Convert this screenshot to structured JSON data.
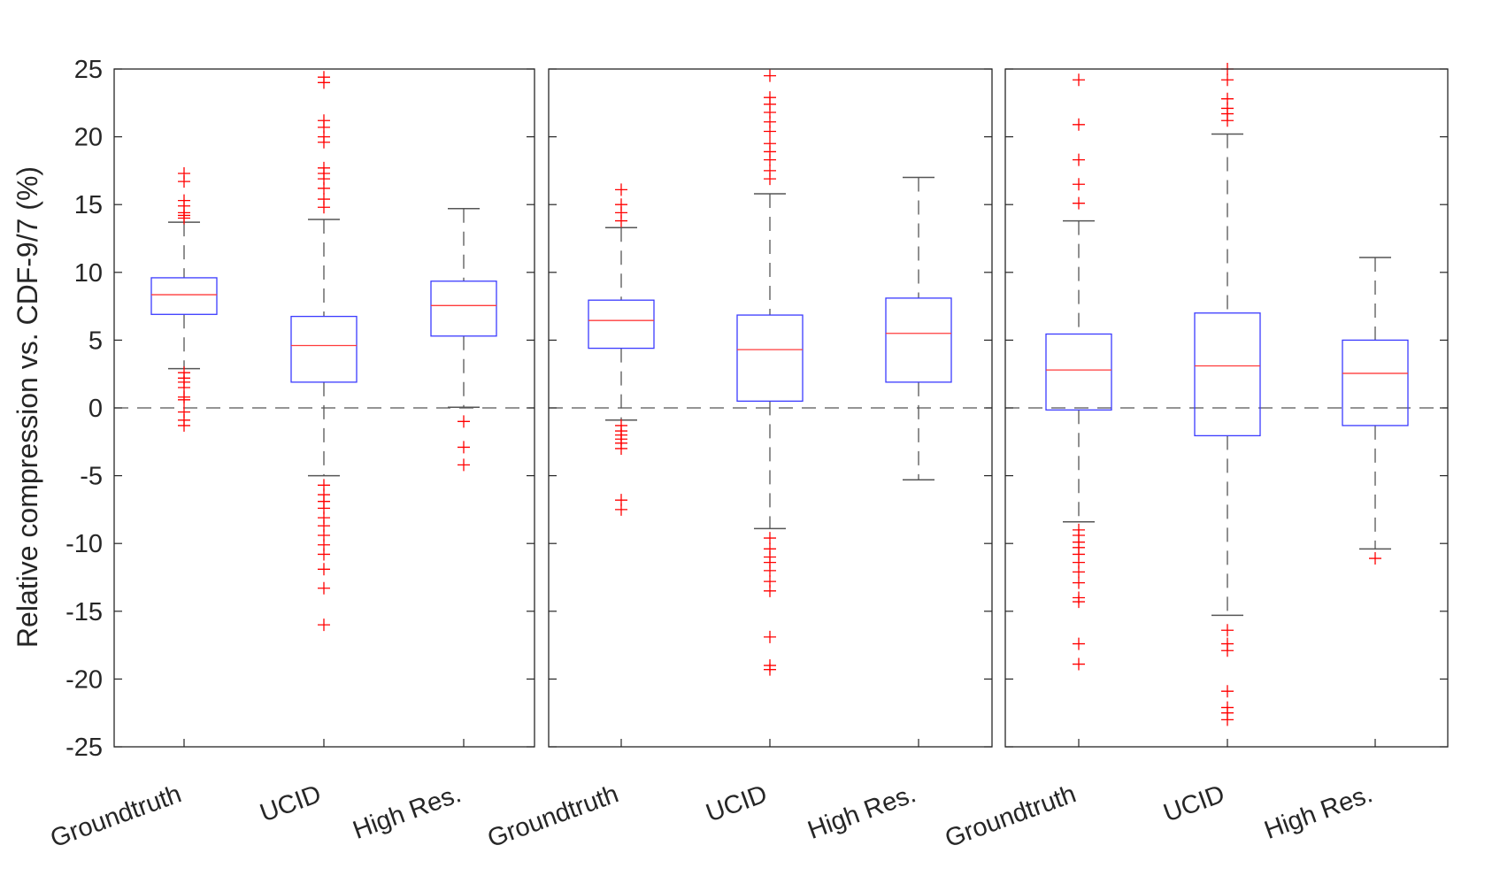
{
  "chart_data": {
    "type": "box",
    "ylabel": "Relative compression vs. CDF-9/7 (%)",
    "ylim": [
      -25,
      25
    ],
    "yticks": [
      25,
      20,
      15,
      10,
      5,
      0,
      -5,
      -10,
      -15,
      -20,
      -25
    ],
    "reference_line": {
      "y": 0,
      "style": "dashed"
    },
    "colors": {
      "box": "#3b3bff",
      "median": "#ff3b3b",
      "whisker": "#555555",
      "outlier": "#ff0000",
      "axis": "#262626"
    },
    "panels": [
      {
        "categories": [
          "Groundtruth",
          "UCID",
          "High Res."
        ],
        "boxes": [
          {
            "q1": 6.9,
            "median": 8.35,
            "q3": 9.6,
            "whisker_low": 2.9,
            "whisker_high": 13.7,
            "outliers": [
              17.3,
              16.7,
              15.3,
              14.9,
              14.4,
              14.2,
              14.0,
              2.6,
              2.2,
              1.9,
              1.5,
              0.8,
              0.6,
              -0.3,
              -0.9,
              -1.3
            ]
          },
          {
            "q1": 1.9,
            "median": 4.6,
            "q3": 6.75,
            "whisker_low": -5.0,
            "whisker_high": 13.9,
            "outliers": [
              24.4,
              24.0,
              21.2,
              20.7,
              20.0,
              19.6,
              17.7,
              17.3,
              16.9,
              16.2,
              15.4,
              14.8,
              -5.7,
              -6.4,
              -6.9,
              -7.4,
              -8.1,
              -8.7,
              -9.4,
              -10.1,
              -10.8,
              -11.9,
              -13.3,
              -16.0
            ]
          },
          {
            "q1": 5.3,
            "median": 7.55,
            "q3": 9.35,
            "whisker_low": 0.05,
            "whisker_high": 14.7,
            "outliers": [
              -1.0,
              -2.9,
              -4.2
            ]
          }
        ]
      },
      {
        "categories": [
          "Groundtruth",
          "UCID",
          "High Res."
        ],
        "boxes": [
          {
            "q1": 4.4,
            "median": 6.45,
            "q3": 7.95,
            "whisker_low": -0.9,
            "whisker_high": 13.3,
            "outliers": [
              16.1,
              15.0,
              14.4,
              13.8,
              -1.3,
              -1.7,
              -2.0,
              -2.3,
              -2.6,
              -3.0,
              -6.8,
              -7.5
            ]
          },
          {
            "q1": 0.5,
            "median": 4.3,
            "q3": 6.85,
            "whisker_low": -8.9,
            "whisker_high": 15.8,
            "outliers": [
              24.5,
              22.9,
              22.4,
              21.8,
              21.1,
              20.4,
              19.5,
              18.9,
              18.3,
              17.5,
              16.9,
              -9.6,
              -10.4,
              -11.0,
              -11.4,
              -12.0,
              -12.8,
              -13.5,
              -16.9,
              -19.0,
              -19.3
            ]
          },
          {
            "q1": 1.9,
            "median": 5.5,
            "q3": 8.1,
            "whisker_low": -5.3,
            "whisker_high": 17.0,
            "outliers": []
          }
        ]
      },
      {
        "categories": [
          "Groundtruth",
          "UCID",
          "High Res."
        ],
        "boxes": [
          {
            "q1": -0.15,
            "median": 2.8,
            "q3": 5.45,
            "whisker_low": -8.4,
            "whisker_high": 13.8,
            "outliers": [
              24.2,
              20.9,
              18.3,
              16.5,
              15.1,
              -9.0,
              -9.4,
              -9.9,
              -10.3,
              -10.8,
              -11.4,
              -12.1,
              -12.9,
              -14.0,
              -14.3,
              -17.4,
              -18.9
            ]
          },
          {
            "q1": -2.05,
            "median": 3.1,
            "q3": 7.0,
            "whisker_low": -15.3,
            "whisker_high": 20.2,
            "outliers": [
              25.0,
              24.2,
              22.8,
              22.1,
              21.7,
              21.2,
              -16.4,
              -17.4,
              -17.9,
              -20.9,
              -22.1,
              -22.5,
              -23.0
            ]
          },
          {
            "q1": -1.3,
            "median": 2.55,
            "q3": 5.0,
            "whisker_low": -10.4,
            "whisker_high": 11.1,
            "outliers": [
              -11.1
            ]
          }
        ]
      }
    ]
  }
}
